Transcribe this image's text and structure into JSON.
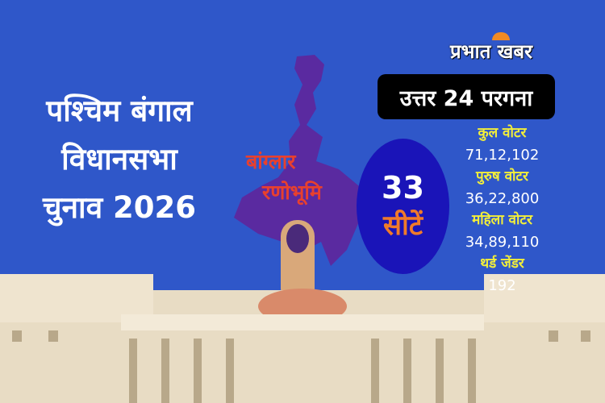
{
  "brand": {
    "logo_text": "प्रभात खबर"
  },
  "title": {
    "line1": "पश्चिम बंगाल",
    "line2": "विधानसभा",
    "line3": "चुनाव 2026"
  },
  "map_label": {
    "line1": "बांग्लार",
    "line2": "रणोभूमि"
  },
  "district": "उत्तर 24 परगना",
  "seats": {
    "count": "33",
    "label": "सीटें"
  },
  "stats": [
    {
      "label": "कुल वोटर",
      "value": "71,12,102"
    },
    {
      "label": "पुरुष वोटर",
      "value": "36,22,800"
    },
    {
      "label": "महिला वोटर",
      "value": "34,89,110"
    },
    {
      "label": "थर्ड जेंडर",
      "value": "192"
    }
  ],
  "colors": {
    "background": "#2f57c9",
    "map": "#5a2aa0",
    "seat_circle": "#1a14b8",
    "label_yellow": "#f3ef3a",
    "accent_orange": "#f07a2a"
  }
}
